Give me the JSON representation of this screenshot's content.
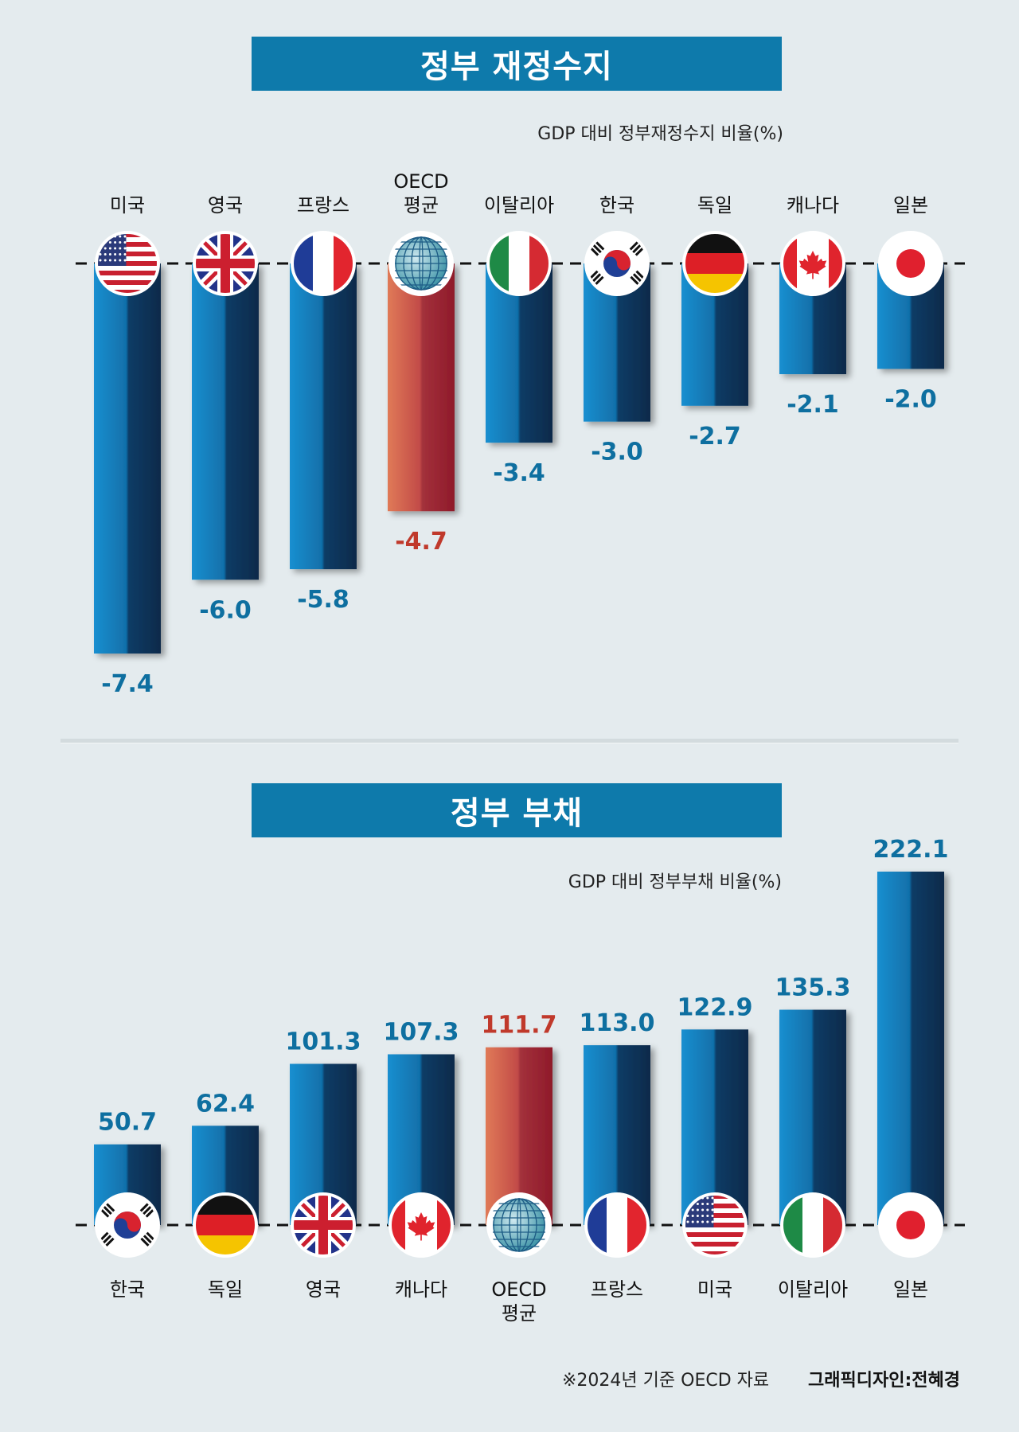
{
  "chart_data": [
    {
      "type": "bar",
      "title": "정부 재정수지",
      "subtitle": "GDP 대비 정부재정수지 비율(%)",
      "ylabel": "GDP 대비 정부재정수지 비율(%)",
      "categories": [
        "미국",
        "영국",
        "프랑스",
        "OECD 평균",
        "이탈리아",
        "한국",
        "독일",
        "캐나다",
        "일본"
      ],
      "category_lines": [
        [
          "미국"
        ],
        [
          "영국"
        ],
        [
          "프랑스"
        ],
        [
          "OECD",
          "평균"
        ],
        [
          "이탈리아"
        ],
        [
          "한국"
        ],
        [
          "독일"
        ],
        [
          "캐나다"
        ],
        [
          "일본"
        ]
      ],
      "values": [
        -7.4,
        -6.0,
        -5.8,
        -4.7,
        -3.4,
        -3.0,
        -2.7,
        -2.1,
        -2.0
      ],
      "labels": [
        "-7.4",
        "-6.0",
        "-5.8",
        "-4.7",
        "-3.4",
        "-3.0",
        "-2.7",
        "-2.1",
        "-2.0"
      ],
      "flags": [
        "us-flag-icon",
        "uk-flag-icon",
        "france-flag-icon",
        "globe-icon",
        "italy-flag-icon",
        "korea-flag-icon",
        "germany-flag-icon",
        "canada-flag-icon",
        "japan-flag-icon"
      ],
      "highlight": [
        false,
        false,
        false,
        true,
        false,
        false,
        false,
        false,
        false
      ],
      "ylim": [
        -7.4,
        0
      ]
    },
    {
      "type": "bar",
      "title": "정부 부채",
      "subtitle": "GDP 대비 정부부채 비율(%)",
      "ylabel": "GDP 대비 정부부채 비율(%)",
      "categories": [
        "한국",
        "독일",
        "영국",
        "캐나다",
        "OECD 평균",
        "프랑스",
        "미국",
        "이탈리아",
        "일본"
      ],
      "category_lines": [
        [
          "한국"
        ],
        [
          "독일"
        ],
        [
          "영국"
        ],
        [
          "캐나다"
        ],
        [
          "OECD",
          "평균"
        ],
        [
          "프랑스"
        ],
        [
          "미국"
        ],
        [
          "이탈리아"
        ],
        [
          "일본"
        ]
      ],
      "values": [
        50.7,
        62.4,
        101.3,
        107.3,
        111.7,
        113.0,
        122.9,
        135.3,
        222.1
      ],
      "labels": [
        "50.7",
        "62.4",
        "101.3",
        "107.3",
        "111.7",
        "113.0",
        "122.9",
        "135.3",
        "222.1"
      ],
      "flags": [
        "korea-flag-icon",
        "germany-flag-icon",
        "uk-flag-icon",
        "canada-flag-icon",
        "globe-icon",
        "france-flag-icon",
        "us-flag-icon",
        "italy-flag-icon",
        "japan-flag-icon"
      ],
      "highlight": [
        false,
        false,
        false,
        false,
        true,
        false,
        false,
        false,
        false
      ],
      "ylim": [
        0,
        222.1
      ]
    }
  ],
  "footer": {
    "source": "※2024년 기준    OECD 자료",
    "credit": "그래픽디자인:전혜경"
  },
  "colors": {
    "background": "#e4ebee",
    "banner": "#0e7aab",
    "bar_light": "#1a8fd0",
    "bar_dark": "#0b2a4a",
    "highlight_light": "#e07a57",
    "highlight_dark": "#8f1a2a",
    "label_blue": "#0e6fa0",
    "label_red": "#c0392b"
  }
}
